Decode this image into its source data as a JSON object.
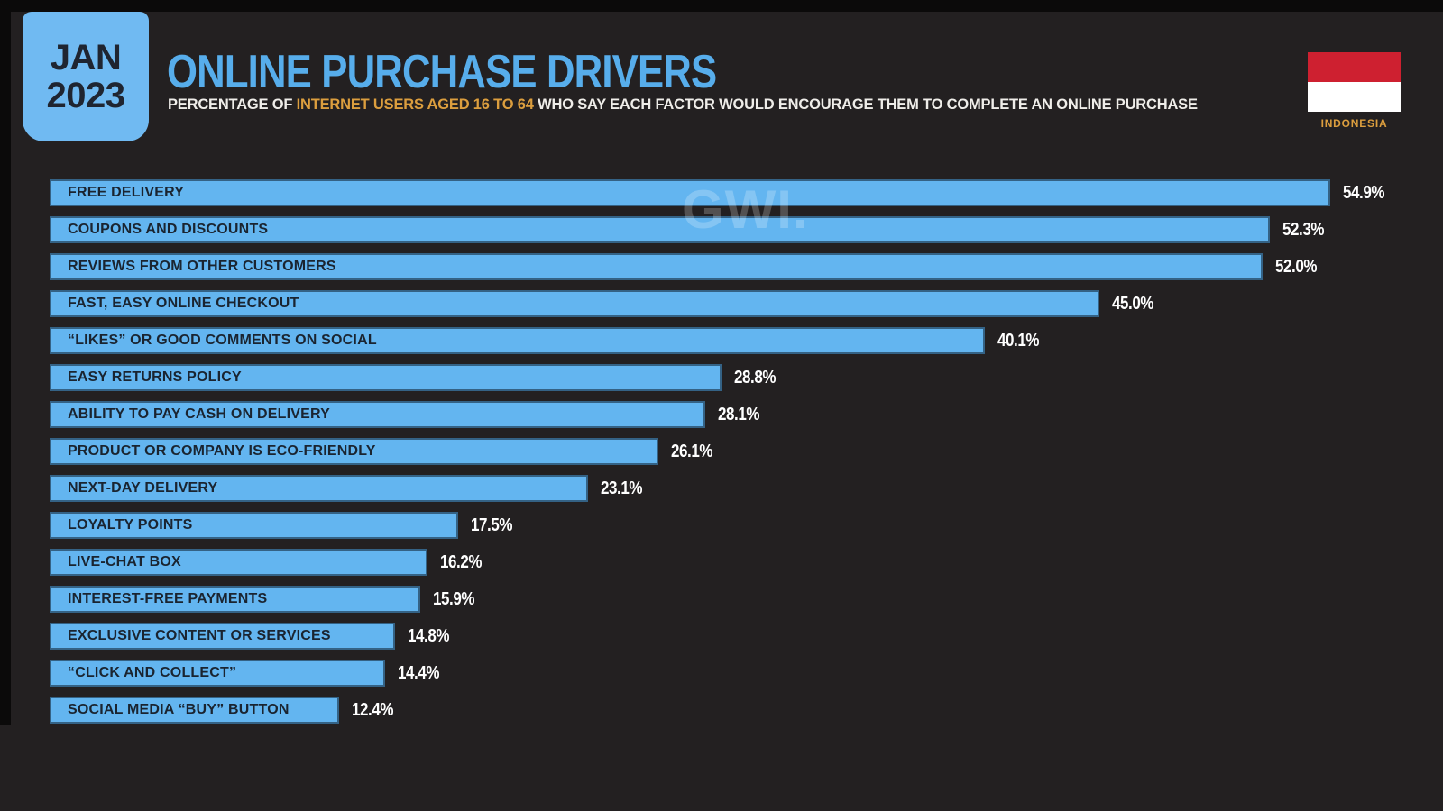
{
  "slide": {
    "badge": {
      "line1": "JAN",
      "line2": "2023"
    },
    "title": "ONLINE PURCHASE DRIVERS",
    "subtitle_prefix": "PERCENTAGE OF ",
    "subtitle_highlight": "INTERNET USERS AGED 16 TO 64",
    "subtitle_suffix": " WHO SAY EACH FACTOR WOULD ENCOURAGE THEM TO COMPLETE AN ONLINE PURCHASE",
    "country_label": "INDONESIA",
    "watermark": "GWI.",
    "colors": {
      "background": "#232021",
      "frame": "#0B0A0A",
      "bar_fill": "#63B5F0",
      "bar_label_text": "#1A2430",
      "badge_fill": "#70BAF2",
      "title_blue": "#57ADEB",
      "highlight_orange": "#DC9E3E",
      "flag_red": "#CE2030",
      "value_text": "#FFFFFF"
    }
  },
  "chart_data": {
    "type": "bar",
    "orientation": "horizontal",
    "title": "ONLINE PURCHASE DRIVERS",
    "subtitle": "PERCENTAGE OF INTERNET USERS AGED 16 TO 64 WHO SAY EACH FACTOR WOULD ENCOURAGE THEM TO COMPLETE AN ONLINE PURCHASE",
    "date_label": "JAN 2023",
    "region": "INDONESIA",
    "unit": "%",
    "xlim": [
      0,
      55
    ],
    "grid": false,
    "legend": false,
    "categories": [
      "FREE DELIVERY",
      "COUPONS AND DISCOUNTS",
      "REVIEWS FROM OTHER CUSTOMERS",
      "FAST, EASY ONLINE CHECKOUT",
      "“LIKES” OR GOOD COMMENTS ON SOCIAL",
      "EASY RETURNS POLICY",
      "ABILITY TO PAY CASH ON DELIVERY",
      "PRODUCT OR COMPANY IS ECO-FRIENDLY",
      "NEXT-DAY DELIVERY",
      "LOYALTY POINTS",
      "LIVE-CHAT BOX",
      "INTEREST-FREE PAYMENTS",
      "EXCLUSIVE CONTENT OR SERVICES",
      "“CLICK AND COLLECT”",
      "SOCIAL MEDIA “BUY” BUTTON"
    ],
    "values": [
      54.9,
      52.3,
      52.0,
      45.0,
      40.1,
      28.8,
      28.1,
      26.1,
      23.1,
      17.5,
      16.2,
      15.9,
      14.8,
      14.4,
      12.4
    ],
    "value_labels": [
      "54.9%",
      "52.3%",
      "52.0%",
      "45.0%",
      "40.1%",
      "28.8%",
      "28.1%",
      "26.1%",
      "23.1%",
      "17.5%",
      "16.2%",
      "15.9%",
      "14.8%",
      "14.4%",
      "12.4%"
    ]
  }
}
